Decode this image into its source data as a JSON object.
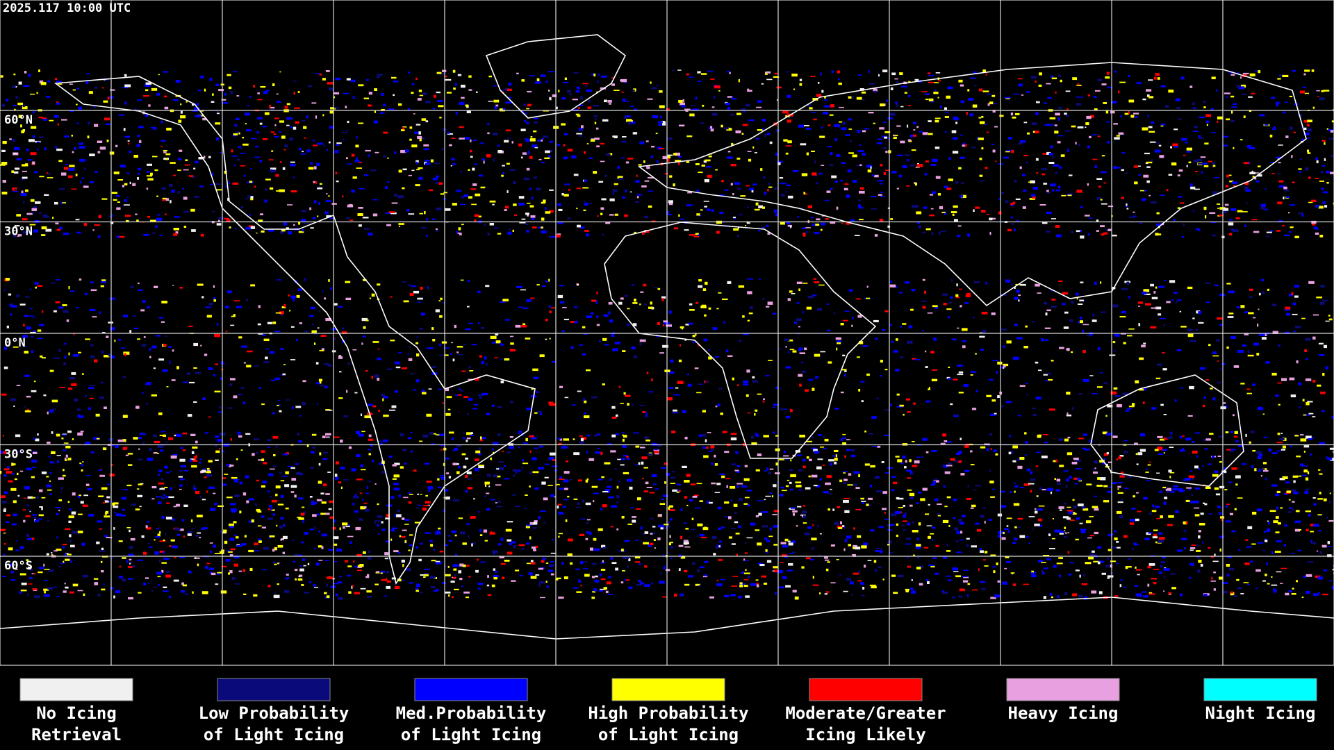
{
  "header": {
    "timestamp": "2025.117 10:00 UTC"
  },
  "map": {
    "latitude_labels": [
      "60°N",
      "30°N",
      "0°N",
      "30°S",
      "60°S"
    ]
  },
  "legend": {
    "items": [
      {
        "label": [
          "No Icing",
          "Retrieval"
        ],
        "color": "#f0f0f0"
      },
      {
        "label": [
          "Low Probability",
          "of Light Icing"
        ],
        "color": "#0a0a7a"
      },
      {
        "label": [
          "Med.Probability",
          "of Light Icing"
        ],
        "color": "#0000ff"
      },
      {
        "label": [
          "High Probability",
          "of Light Icing"
        ],
        "color": "#ffff00"
      },
      {
        "label": [
          "Moderate/Greater",
          "Icing Likely"
        ],
        "color": "#ff0000"
      },
      {
        "label": [
          "Heavy Icing"
        ],
        "color": "#e8a0e0"
      },
      {
        "label": [
          "Night Icing"
        ],
        "color": "#00ffff"
      }
    ]
  }
}
